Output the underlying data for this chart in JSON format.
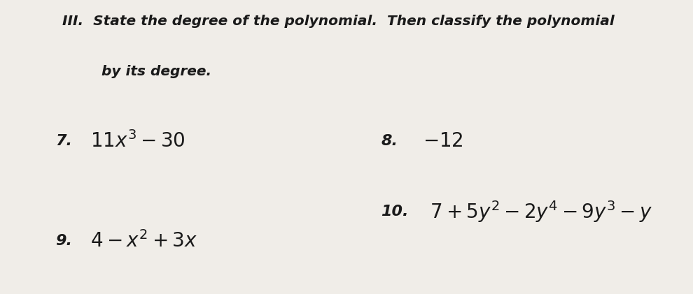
{
  "bg_color": "#d6d0c8",
  "paper_color": "#f0ede8",
  "title_line1": "III.  State the degree of the polynomial.  Then classify the polynomial",
  "title_line2": "        by its degree.",
  "item7_label": "7.",
  "item7_expr": "$11x^3-30$",
  "item8_label": "8.",
  "item8_expr": "$-12$",
  "item9_label": "9.",
  "item9_expr": "$4-x^2+3x$",
  "item10_label": "10.",
  "item10_expr": "$7+5y^2-2y^4-9y^3-y$",
  "title_fontsize": 14.5,
  "expr_fontsize": 20,
  "label_fontsize": 16
}
